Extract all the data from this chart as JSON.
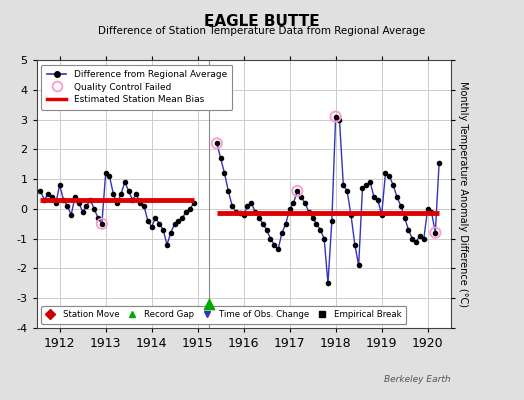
{
  "title": "EAGLE BUTTE",
  "subtitle": "Difference of Station Temperature Data from Regional Average",
  "ylabel": "Monthly Temperature Anomaly Difference (°C)",
  "xlabel_credit": "Berkeley Earth",
  "xlim": [
    1911.5,
    1920.5
  ],
  "ylim": [
    -4,
    5
  ],
  "yticks": [
    -4,
    -3,
    -2,
    -1,
    0,
    1,
    2,
    3,
    4,
    5
  ],
  "xticks": [
    1912,
    1913,
    1914,
    1915,
    1916,
    1917,
    1918,
    1919,
    1920
  ],
  "fig_bg_color": "#e0e0e0",
  "plot_bg_color": "#ffffff",
  "grid_color": "#cccccc",
  "segment1": {
    "x": [
      1911.583,
      1911.667,
      1911.75,
      1911.833,
      1911.917,
      1912.0,
      1912.083,
      1912.167,
      1912.25,
      1912.333,
      1912.417,
      1912.5,
      1912.583,
      1912.667,
      1912.75,
      1912.833,
      1912.917,
      1913.0,
      1913.083,
      1913.167,
      1913.25,
      1913.333,
      1913.417,
      1913.5,
      1913.583,
      1913.667,
      1913.75,
      1913.833,
      1913.917,
      1914.0,
      1914.083,
      1914.167,
      1914.25,
      1914.333,
      1914.417,
      1914.5,
      1914.583,
      1914.667,
      1914.75,
      1914.833,
      1914.917
    ],
    "y": [
      0.6,
      0.3,
      0.5,
      0.4,
      0.2,
      0.8,
      0.3,
      0.1,
      -0.2,
      0.4,
      0.2,
      -0.1,
      0.1,
      0.3,
      0.0,
      -0.3,
      -0.5,
      1.2,
      1.1,
      0.5,
      0.2,
      0.5,
      0.9,
      0.6,
      0.3,
      0.5,
      0.2,
      0.1,
      -0.4,
      -0.6,
      -0.3,
      -0.5,
      -0.7,
      -1.2,
      -0.8,
      -0.5,
      -0.4,
      -0.3,
      -0.1,
      0.0,
      0.2
    ],
    "qc_indices": [
      16
    ],
    "bias": 0.3,
    "bias_xstart": 1911.583,
    "bias_xend": 1914.917
  },
  "segment2": {
    "x": [
      1915.417,
      1915.5,
      1915.583,
      1915.667,
      1915.75,
      1915.833,
      1915.917,
      1916.0,
      1916.083,
      1916.167,
      1916.25,
      1916.333,
      1916.417,
      1916.5,
      1916.583,
      1916.667,
      1916.75,
      1916.833,
      1916.917,
      1917.0,
      1917.083,
      1917.167,
      1917.25,
      1917.333,
      1917.417,
      1917.5,
      1917.583,
      1917.667,
      1917.75,
      1917.833,
      1917.917,
      1918.0,
      1918.083,
      1918.167,
      1918.25,
      1918.333,
      1918.417,
      1918.5,
      1918.583,
      1918.667,
      1918.75,
      1918.833,
      1918.917,
      1919.0,
      1919.083,
      1919.167,
      1919.25,
      1919.333,
      1919.417,
      1919.5,
      1919.583,
      1919.667,
      1919.75,
      1919.833,
      1919.917,
      1920.0,
      1920.083,
      1920.167,
      1920.25
    ],
    "y": [
      2.2,
      1.7,
      1.2,
      0.6,
      0.1,
      -0.1,
      -0.15,
      -0.2,
      0.1,
      0.2,
      -0.1,
      -0.3,
      -0.5,
      -0.7,
      -1.0,
      -1.2,
      -1.35,
      -0.8,
      -0.5,
      0.0,
      0.2,
      0.6,
      0.4,
      0.2,
      -0.1,
      -0.3,
      -0.5,
      -0.7,
      -1.0,
      -2.5,
      -0.4,
      3.1,
      3.0,
      0.8,
      0.6,
      -0.2,
      -1.2,
      -1.9,
      0.7,
      0.8,
      0.9,
      0.4,
      0.3,
      -0.2,
      1.2,
      1.1,
      0.8,
      0.4,
      0.1,
      -0.3,
      -0.7,
      -1.0,
      -1.1,
      -0.9,
      -1.0,
      0.0,
      -0.1,
      -0.8,
      1.55
    ],
    "qc_indices": [
      0,
      21,
      31,
      57
    ],
    "bias": -0.15,
    "bias_xstart": 1915.417,
    "bias_xend": 1920.25
  },
  "record_gap_x": 1915.25,
  "record_gap_y": -3.2,
  "line_color": "#3333bb",
  "dot_color": "#000000",
  "qc_color": "#ff99cc",
  "bias_color": "#dd0000",
  "gap_line_x": 1915.25,
  "gap_line_color": "#888888"
}
